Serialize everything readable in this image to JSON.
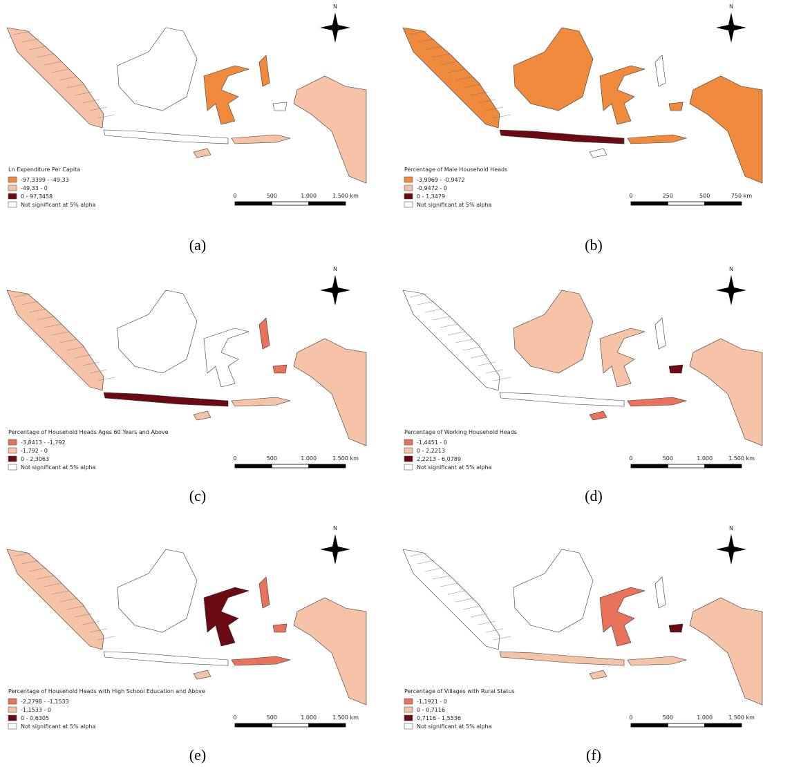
{
  "panels": [
    {
      "caption": "(a)",
      "north": "N",
      "legend": {
        "title": "Ln Expenditure Per Capita",
        "items": [
          {
            "label": "-97,3399 - -49,33",
            "color": "#f08a3c"
          },
          {
            "label": "-49,33 - 0",
            "color": "#f7c3a6"
          },
          {
            "label": "0 - 97,3458",
            "color": "#6b0a12"
          },
          {
            "label": "Not significant at 5% alpha",
            "color": "#ffffff"
          }
        ]
      },
      "scale": [
        "0",
        "500",
        "1.000",
        "1.500 km"
      ]
    },
    {
      "caption": "(b)",
      "north": "N",
      "legend": {
        "title": "Percentage of Male Household Heads",
        "items": [
          {
            "label": "-3,9969 - -0,9472",
            "color": "#f08a3c"
          },
          {
            "label": "-0,9472 - 0",
            "color": "#f7c3a6"
          },
          {
            "label": "0 - 1,3479",
            "color": "#6b0a12"
          },
          {
            "label": "Not significant at 5% alpha",
            "color": "#ffffff"
          }
        ]
      },
      "scale": [
        "0",
        "250",
        "500",
        "750 km"
      ]
    },
    {
      "caption": "(c)",
      "north": "N",
      "legend": {
        "title": "Percentage of Household Heads Ages 60 Years and Above",
        "items": [
          {
            "label": "-3,8413 - -1,792",
            "color": "#e8735a"
          },
          {
            "label": "-1,792 - 0",
            "color": "#f7c3a6"
          },
          {
            "label": "0 - 2,3063",
            "color": "#6b0a12"
          },
          {
            "label": "Not significant at 5% alpha",
            "color": "#ffffff"
          }
        ]
      },
      "scale": [
        "0",
        "500",
        "1.000",
        "1.500 km"
      ]
    },
    {
      "caption": "(d)",
      "north": "N",
      "legend": {
        "title": "Percentage of Working Household Heads",
        "items": [
          {
            "label": "-1,4451 - 0",
            "color": "#e8735a"
          },
          {
            "label": "0 - 2,2213",
            "color": "#f7c3a6"
          },
          {
            "label": "2,2213 - 6,0789",
            "color": "#6b0a12"
          },
          {
            "label": "Not significant at 5% alpha",
            "color": "#ffffff"
          }
        ]
      },
      "scale": [
        "0",
        "500",
        "1.000",
        "1.500 km"
      ]
    },
    {
      "caption": "(e)",
      "north": "N",
      "legend": {
        "title": "Percentage of Household Heads with High School Education and Above",
        "items": [
          {
            "label": "-2,2798 - -1,1533",
            "color": "#e8735a"
          },
          {
            "label": "-1,1533 - 0",
            "color": "#f7c3a6"
          },
          {
            "label": "0 - 0,6305",
            "color": "#6b0a12"
          },
          {
            "label": "Not significant at 5% alpha",
            "color": "#ffffff"
          }
        ]
      },
      "scale": [
        "0",
        "500",
        "1.000",
        "1.500 km"
      ]
    },
    {
      "caption": "(f)",
      "north": "N",
      "legend": {
        "title": "Percentage of Villages with Rural Status",
        "items": [
          {
            "label": "-1,1921 - 0",
            "color": "#e8735a"
          },
          {
            "label": "0 - 0,7116",
            "color": "#f7c3a6"
          },
          {
            "label": "0,7116 - 1,5536",
            "color": "#6b0a12"
          },
          {
            "label": "Not significant at 5% alpha",
            "color": "#ffffff"
          }
        ]
      },
      "scale": [
        "0",
        "500",
        "1.000",
        "1.500 km"
      ]
    }
  ]
}
